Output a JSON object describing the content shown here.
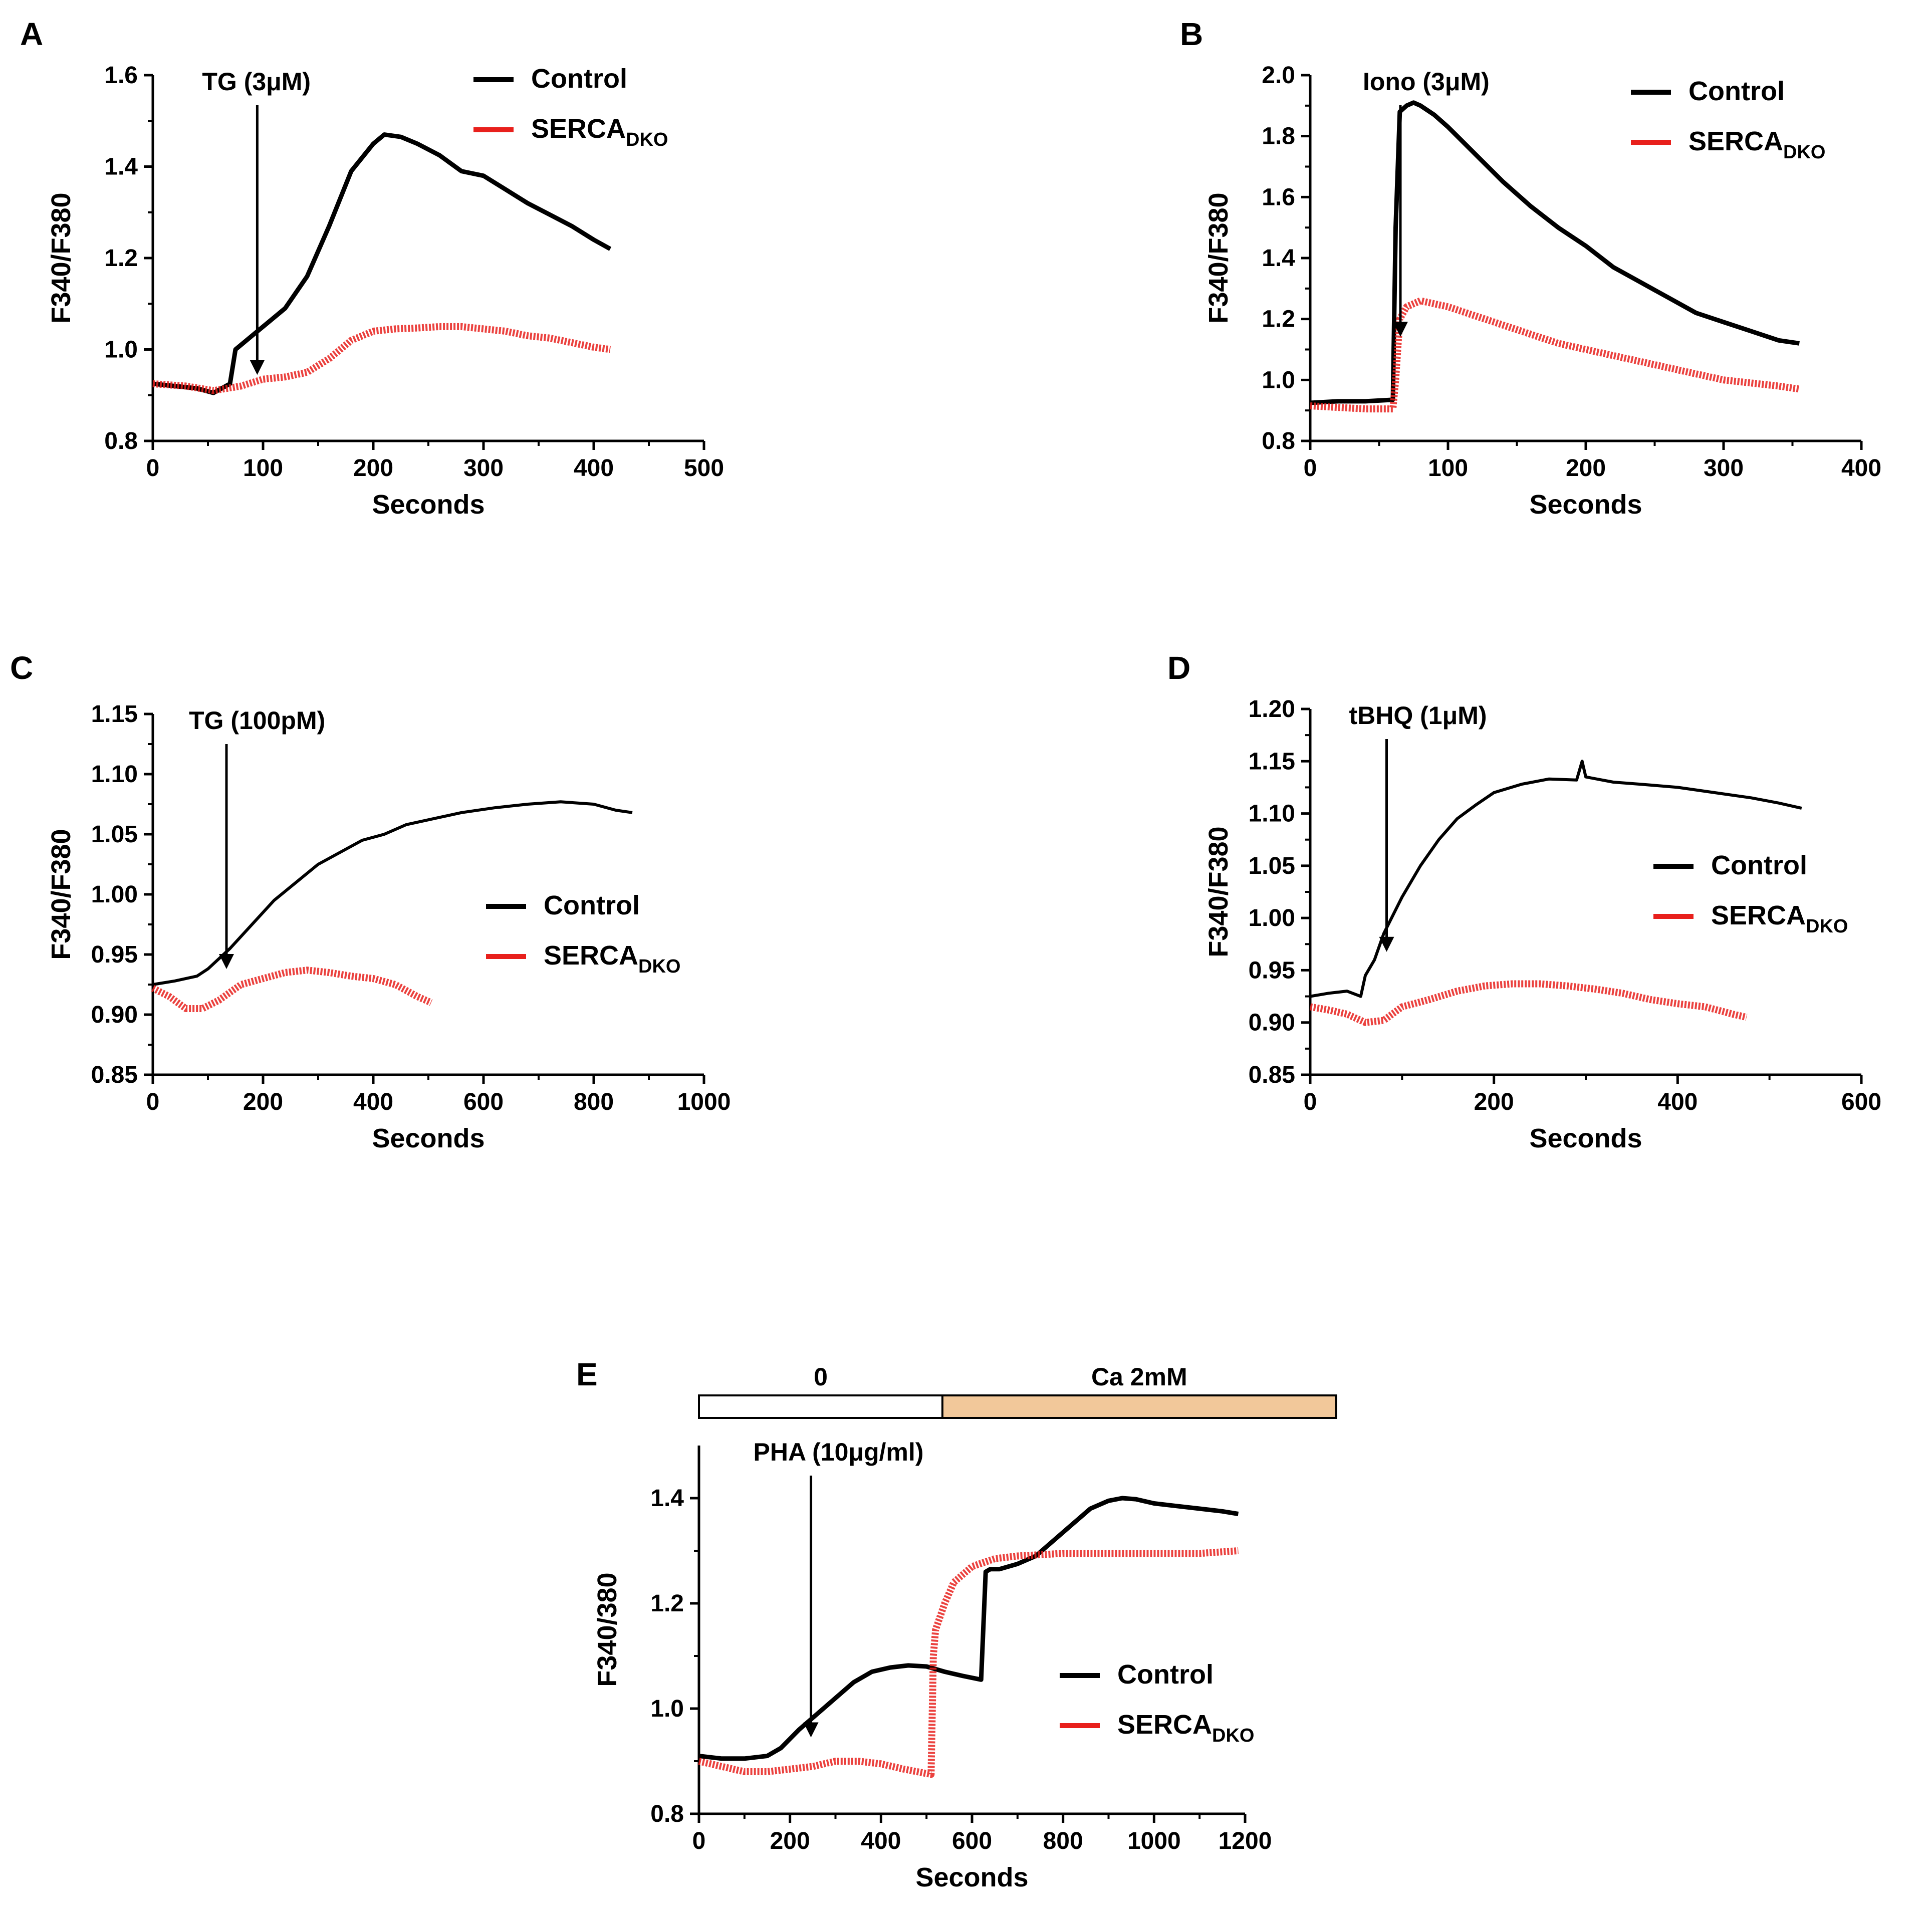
{
  "colors": {
    "control": "#000000",
    "serca": "#e8201c",
    "calcium_bar": "#f2c89a"
  },
  "chart_data": [
    {
      "id": "A",
      "type": "line",
      "panel_label": "A",
      "xlabel": "Seconds",
      "ylabel": "F340/F380",
      "xlim": [
        0,
        500
      ],
      "ylim": [
        0.8,
        1.6
      ],
      "xticks": [
        0,
        100,
        200,
        300,
        400,
        500
      ],
      "yticks": [
        0.8,
        1.0,
        1.2,
        1.4,
        1.6
      ],
      "ytick_decimals": 1,
      "annotation": {
        "text": "TG (3μM)",
        "x": 47
      },
      "legend": {
        "position": "top-right",
        "entries": [
          {
            "label": "Control"
          },
          {
            "label": "SERCA",
            "subscript": "DKO"
          }
        ]
      },
      "series": [
        {
          "name": "Control",
          "stroke": "thick",
          "x": [
            0,
            20,
            40,
            55,
            70,
            75,
            80,
            90,
            100,
            120,
            140,
            160,
            180,
            200,
            210,
            225,
            240,
            260,
            280,
            300,
            320,
            340,
            360,
            380,
            400,
            415
          ],
          "y": [
            0.925,
            0.92,
            0.915,
            0.905,
            0.925,
            1.0,
            1.01,
            1.03,
            1.05,
            1.09,
            1.16,
            1.27,
            1.39,
            1.45,
            1.47,
            1.465,
            1.45,
            1.425,
            1.39,
            1.38,
            1.35,
            1.32,
            1.295,
            1.27,
            1.24,
            1.22
          ]
        },
        {
          "name": "SERCA DKO",
          "stroke": "dashed",
          "x": [
            0,
            30,
            55,
            80,
            100,
            120,
            140,
            160,
            180,
            200,
            220,
            240,
            260,
            280,
            300,
            320,
            340,
            360,
            380,
            400,
            415
          ],
          "y": [
            0.925,
            0.92,
            0.91,
            0.92,
            0.935,
            0.94,
            0.95,
            0.98,
            1.02,
            1.04,
            1.045,
            1.047,
            1.05,
            1.05,
            1.045,
            1.04,
            1.03,
            1.025,
            1.015,
            1.005,
            1.0
          ]
        }
      ]
    },
    {
      "id": "B",
      "type": "line",
      "panel_label": "B",
      "xlabel": "Seconds",
      "ylabel": "F340/F380",
      "xlim": [
        0,
        400
      ],
      "ylim": [
        0.8,
        2.0
      ],
      "xticks": [
        0,
        100,
        200,
        300,
        400
      ],
      "yticks": [
        0.8,
        1.0,
        1.2,
        1.4,
        1.6,
        1.8,
        2.0
      ],
      "ytick_decimals": 1,
      "annotation": {
        "text": "Iono (3μM)",
        "x": 40
      },
      "legend": {
        "position": "top-right",
        "entries": [
          {
            "label": "Control"
          },
          {
            "label": "SERCA",
            "subscript": "DKO"
          }
        ]
      },
      "series": [
        {
          "name": "Control",
          "stroke": "thick",
          "x": [
            0,
            20,
            40,
            60,
            62,
            65,
            70,
            75,
            80,
            90,
            100,
            120,
            140,
            160,
            180,
            200,
            220,
            240,
            260,
            280,
            300,
            320,
            340,
            355
          ],
          "y": [
            0.925,
            0.93,
            0.93,
            0.935,
            1.5,
            1.88,
            1.9,
            1.91,
            1.9,
            1.87,
            1.83,
            1.74,
            1.65,
            1.57,
            1.5,
            1.44,
            1.37,
            1.32,
            1.27,
            1.22,
            1.19,
            1.16,
            1.13,
            1.12
          ]
        },
        {
          "name": "SERCA DKO",
          "stroke": "dashed",
          "x": [
            0,
            20,
            40,
            60,
            62,
            65,
            70,
            80,
            100,
            120,
            140,
            160,
            180,
            200,
            220,
            240,
            260,
            280,
            300,
            320,
            340,
            355
          ],
          "y": [
            0.915,
            0.91,
            0.905,
            0.905,
            1.0,
            1.2,
            1.24,
            1.26,
            1.24,
            1.21,
            1.18,
            1.15,
            1.12,
            1.1,
            1.08,
            1.06,
            1.04,
            1.02,
            1.0,
            0.99,
            0.98,
            0.97
          ]
        }
      ]
    },
    {
      "id": "C",
      "type": "line",
      "panel_label": "C",
      "xlabel": "Seconds",
      "ylabel": "F340/F380",
      "xlim": [
        0,
        1000
      ],
      "ylim": [
        0.85,
        1.15
      ],
      "xticks": [
        0,
        200,
        400,
        600,
        800,
        1000
      ],
      "yticks": [
        0.85,
        0.9,
        0.95,
        1.0,
        1.05,
        1.1,
        1.15
      ],
      "ytick_decimals": 2,
      "annotation": {
        "text": "TG (100pM)",
        "x": 70
      },
      "legend": {
        "position": "center-right",
        "entries": [
          {
            "label": "Control"
          },
          {
            "label": "SERCA",
            "subscript": "DKO"
          }
        ]
      },
      "series": [
        {
          "name": "Control",
          "stroke": "thin",
          "x": [
            0,
            40,
            80,
            100,
            140,
            180,
            220,
            260,
            300,
            340,
            380,
            420,
            460,
            500,
            560,
            620,
            680,
            740,
            800,
            840,
            870
          ],
          "y": [
            0.925,
            0.928,
            0.932,
            0.938,
            0.955,
            0.975,
            0.995,
            1.01,
            1.025,
            1.035,
            1.045,
            1.05,
            1.058,
            1.062,
            1.068,
            1.072,
            1.075,
            1.077,
            1.075,
            1.07,
            1.068
          ]
        },
        {
          "name": "SERCA DKO",
          "stroke": "dashed",
          "x": [
            0,
            30,
            60,
            90,
            120,
            160,
            200,
            240,
            280,
            320,
            360,
            400,
            440,
            480,
            505
          ],
          "y": [
            0.922,
            0.915,
            0.905,
            0.905,
            0.912,
            0.925,
            0.93,
            0.935,
            0.937,
            0.935,
            0.932,
            0.93,
            0.925,
            0.915,
            0.91
          ]
        }
      ]
    },
    {
      "id": "D",
      "type": "line",
      "panel_label": "D",
      "xlabel": "Seconds",
      "ylabel": "F340/F380",
      "xlim": [
        0,
        600
      ],
      "ylim": [
        0.85,
        1.2
      ],
      "xticks": [
        0,
        200,
        400,
        600
      ],
      "yticks": [
        0.85,
        0.9,
        0.95,
        1.0,
        1.05,
        1.1,
        1.15,
        1.2
      ],
      "ytick_decimals": 2,
      "annotation": {
        "text": "tBHQ (1μM)",
        "x": 45
      },
      "legend": {
        "position": "center-right",
        "entries": [
          {
            "label": "Control"
          },
          {
            "label": "SERCA",
            "subscript": "DKO"
          }
        ]
      },
      "series": [
        {
          "name": "Control",
          "stroke": "thin",
          "x": [
            0,
            20,
            40,
            55,
            60,
            70,
            80,
            100,
            120,
            140,
            160,
            180,
            200,
            230,
            260,
            290,
            296,
            300,
            330,
            360,
            400,
            440,
            480,
            510,
            535
          ],
          "y": [
            0.925,
            0.928,
            0.93,
            0.925,
            0.945,
            0.96,
            0.985,
            1.02,
            1.05,
            1.075,
            1.095,
            1.108,
            1.12,
            1.128,
            1.133,
            1.132,
            1.15,
            1.135,
            1.13,
            1.128,
            1.125,
            1.12,
            1.115,
            1.11,
            1.105
          ]
        },
        {
          "name": "SERCA DKO",
          "stroke": "dashed",
          "x": [
            0,
            20,
            40,
            60,
            80,
            100,
            130,
            160,
            190,
            220,
            250,
            280,
            310,
            340,
            370,
            400,
            430,
            460,
            475
          ],
          "y": [
            0.915,
            0.912,
            0.908,
            0.9,
            0.902,
            0.915,
            0.922,
            0.93,
            0.935,
            0.937,
            0.937,
            0.935,
            0.932,
            0.928,
            0.922,
            0.918,
            0.915,
            0.908,
            0.905
          ]
        }
      ]
    },
    {
      "id": "E",
      "type": "line",
      "panel_label": "E",
      "xlabel": "Seconds",
      "ylabel": "F340/380",
      "xlim": [
        0,
        1200
      ],
      "ylim": [
        0.8,
        1.5
      ],
      "xticks": [
        0,
        200,
        400,
        600,
        800,
        1000,
        1200
      ],
      "yticks": [
        0.8,
        1.0,
        1.2,
        1.4
      ],
      "ytick_decimals": 1,
      "annotation": {
        "text": "PHA (10μg/ml)",
        "x": 125
      },
      "legend": {
        "position": "bottom-right",
        "entries": [
          {
            "label": "Control"
          },
          {
            "label": "SERCA",
            "subscript": "DKO"
          }
        ]
      },
      "top_bar": {
        "segments": [
          {
            "label": "0",
            "x_start": 0,
            "x_end": 535
          },
          {
            "label": "Ca 2mM",
            "x_start": 535,
            "x_end": 1400
          }
        ]
      },
      "series": [
        {
          "name": "Control",
          "stroke": "thick",
          "x": [
            0,
            50,
            100,
            150,
            180,
            220,
            260,
            300,
            340,
            380,
            420,
            460,
            500,
            540,
            580,
            620,
            630,
            640,
            660,
            700,
            740,
            780,
            820,
            860,
            900,
            930,
            960,
            1000,
            1050,
            1100,
            1150,
            1185
          ],
          "y": [
            0.91,
            0.905,
            0.905,
            0.91,
            0.925,
            0.96,
            0.99,
            1.02,
            1.05,
            1.07,
            1.078,
            1.082,
            1.08,
            1.07,
            1.062,
            1.055,
            1.26,
            1.265,
            1.265,
            1.275,
            1.29,
            1.32,
            1.35,
            1.38,
            1.395,
            1.4,
            1.398,
            1.39,
            1.385,
            1.38,
            1.375,
            1.37
          ]
        },
        {
          "name": "SERCA DKO",
          "stroke": "dashed",
          "x": [
            0,
            50,
            100,
            150,
            200,
            250,
            300,
            350,
            400,
            450,
            510,
            515,
            520,
            540,
            560,
            600,
            650,
            700,
            800,
            900,
            1000,
            1100,
            1185
          ],
          "y": [
            0.9,
            0.89,
            0.88,
            0.88,
            0.885,
            0.89,
            0.9,
            0.9,
            0.895,
            0.885,
            0.875,
            1.1,
            1.15,
            1.2,
            1.24,
            1.27,
            1.285,
            1.29,
            1.295,
            1.295,
            1.295,
            1.295,
            1.3
          ]
        }
      ]
    }
  ]
}
